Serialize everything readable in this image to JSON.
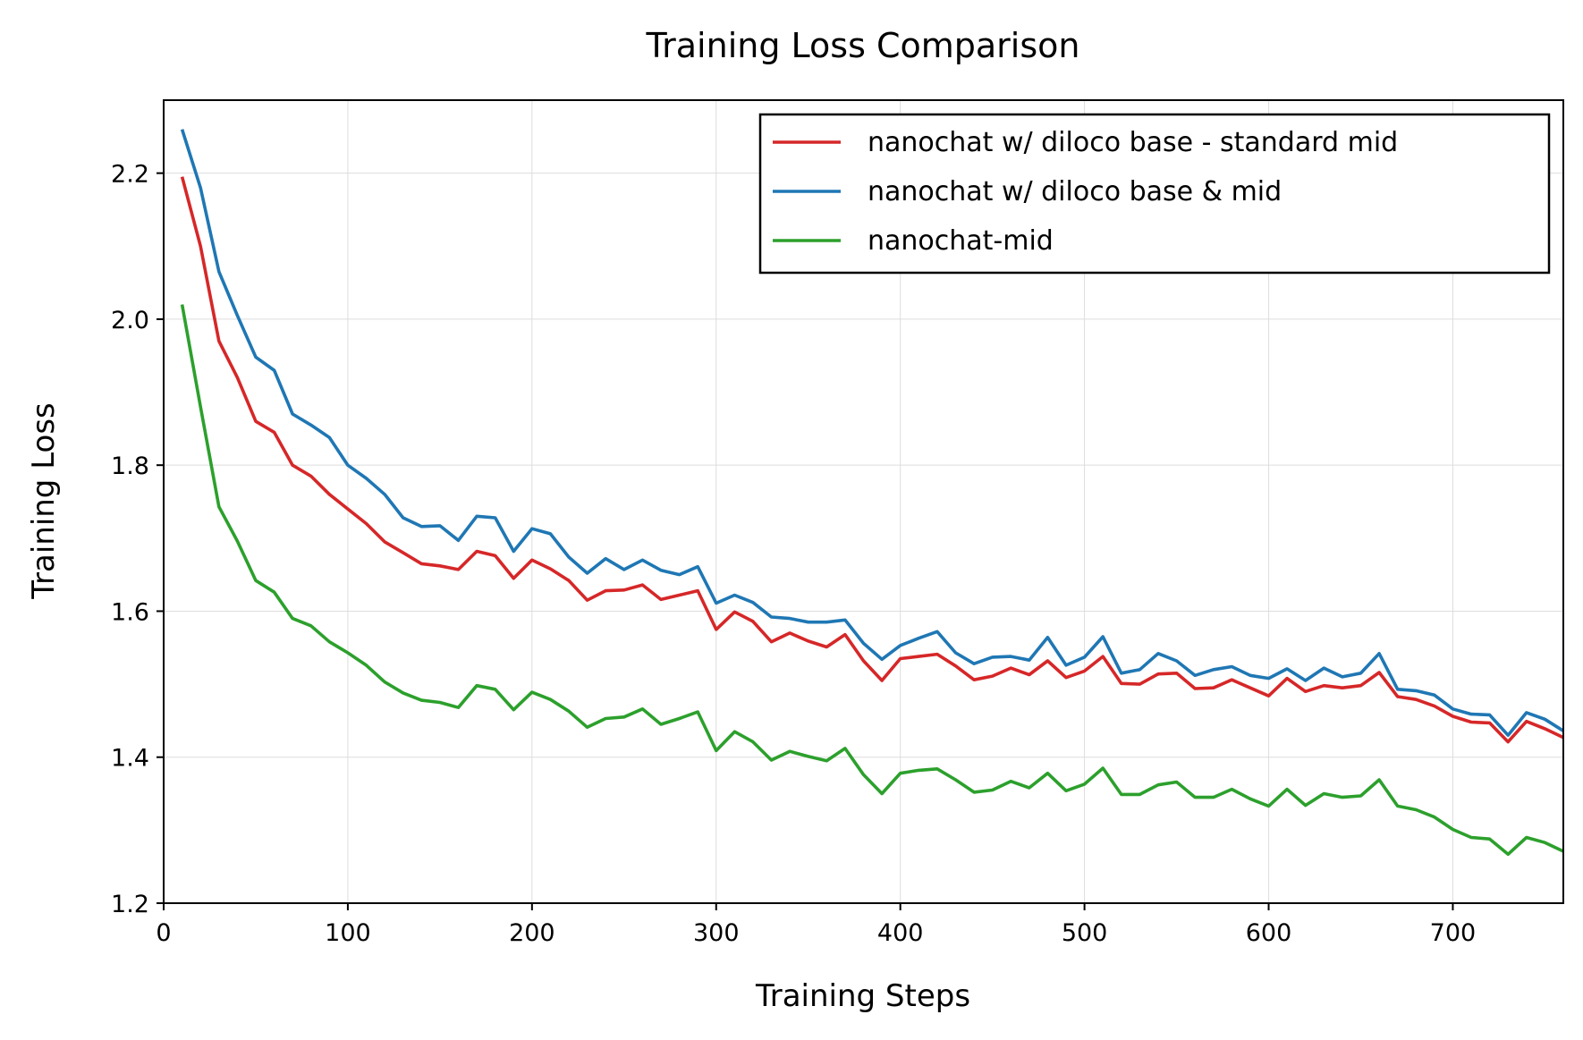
{
  "chart_data": {
    "type": "line",
    "title": "Training Loss Comparison",
    "xlabel": "Training Steps",
    "ylabel": "Training Loss",
    "xlim": [
      0,
      760
    ],
    "ylim": [
      1.2,
      2.3
    ],
    "x_ticks": [
      0,
      100,
      200,
      300,
      400,
      500,
      600,
      700
    ],
    "y_ticks": [
      1.2,
      1.4,
      1.6,
      1.8,
      2.0,
      2.2
    ],
    "y_tick_labels": [
      "1.2",
      "1.4",
      "1.6",
      "1.8",
      "2.0",
      "2.2"
    ],
    "grid": true,
    "legend_position": "top-right",
    "x": [
      10,
      20,
      30,
      40,
      50,
      60,
      70,
      80,
      90,
      100,
      110,
      120,
      130,
      140,
      150,
      160,
      170,
      180,
      190,
      200,
      210,
      220,
      230,
      240,
      250,
      260,
      270,
      280,
      290,
      300,
      310,
      320,
      330,
      340,
      350,
      360,
      370,
      380,
      390,
      400,
      410,
      420,
      430,
      440,
      450,
      460,
      470,
      480,
      490,
      500,
      510,
      520,
      530,
      540,
      550,
      560,
      570,
      580,
      590,
      600,
      610,
      620,
      630,
      640,
      650,
      660,
      670,
      680,
      690,
      700,
      710,
      720,
      730,
      740,
      750,
      760
    ],
    "series": [
      {
        "name": "nanochat w/ diloco base - standard mid",
        "color": "#d62728",
        "values": [
          2.195,
          2.1,
          1.97,
          1.92,
          1.86,
          1.845,
          1.8,
          1.785,
          1.76,
          1.74,
          1.72,
          1.695,
          1.68,
          1.665,
          1.662,
          1.657,
          1.682,
          1.676,
          1.645,
          1.67,
          1.658,
          1.642,
          1.615,
          1.628,
          1.629,
          1.636,
          1.616,
          1.622,
          1.628,
          1.575,
          1.599,
          1.586,
          1.558,
          1.57,
          1.559,
          1.551,
          1.568,
          1.532,
          1.505,
          1.535,
          1.538,
          1.541,
          1.525,
          1.506,
          1.511,
          1.522,
          1.513,
          1.532,
          1.509,
          1.518,
          1.538,
          1.501,
          1.5,
          1.514,
          1.515,
          1.494,
          1.495,
          1.506,
          1.495,
          1.484,
          1.508,
          1.49,
          1.498,
          1.495,
          1.498,
          1.516,
          1.483,
          1.479,
          1.47,
          1.456,
          1.448,
          1.447,
          1.421,
          1.449,
          1.439,
          1.427
        ]
      },
      {
        "name": "nanochat w/ diloco base & mid",
        "color": "#1f77b4",
        "values": [
          2.26,
          2.18,
          2.065,
          2.005,
          1.948,
          1.93,
          1.87,
          1.855,
          1.838,
          1.8,
          1.782,
          1.76,
          1.728,
          1.716,
          1.717,
          1.697,
          1.73,
          1.728,
          1.682,
          1.713,
          1.706,
          1.674,
          1.652,
          1.672,
          1.657,
          1.67,
          1.656,
          1.65,
          1.661,
          1.611,
          1.622,
          1.612,
          1.592,
          1.59,
          1.585,
          1.585,
          1.588,
          1.556,
          1.534,
          1.553,
          1.563,
          1.572,
          1.543,
          1.528,
          1.537,
          1.538,
          1.533,
          1.564,
          1.526,
          1.537,
          1.565,
          1.515,
          1.52,
          1.542,
          1.532,
          1.512,
          1.52,
          1.524,
          1.512,
          1.508,
          1.521,
          1.505,
          1.522,
          1.51,
          1.515,
          1.542,
          1.493,
          1.491,
          1.485,
          1.466,
          1.459,
          1.458,
          1.43,
          1.461,
          1.452,
          1.436
        ]
      },
      {
        "name": "nanochat-mid",
        "color": "#2ca02c",
        "values": [
          2.02,
          1.88,
          1.743,
          1.696,
          1.642,
          1.626,
          1.59,
          1.58,
          1.558,
          1.543,
          1.526,
          1.503,
          1.488,
          1.478,
          1.475,
          1.468,
          1.498,
          1.493,
          1.465,
          1.489,
          1.479,
          1.463,
          1.441,
          1.453,
          1.455,
          1.466,
          1.445,
          1.453,
          1.462,
          1.409,
          1.435,
          1.421,
          1.396,
          1.408,
          1.401,
          1.395,
          1.412,
          1.376,
          1.35,
          1.378,
          1.382,
          1.384,
          1.369,
          1.352,
          1.355,
          1.367,
          1.358,
          1.378,
          1.354,
          1.363,
          1.385,
          1.349,
          1.349,
          1.362,
          1.366,
          1.345,
          1.345,
          1.356,
          1.343,
          1.333,
          1.356,
          1.334,
          1.35,
          1.345,
          1.347,
          1.369,
          1.333,
          1.328,
          1.318,
          1.301,
          1.29,
          1.288,
          1.267,
          1.29,
          1.283,
          1.271
        ]
      }
    ]
  }
}
